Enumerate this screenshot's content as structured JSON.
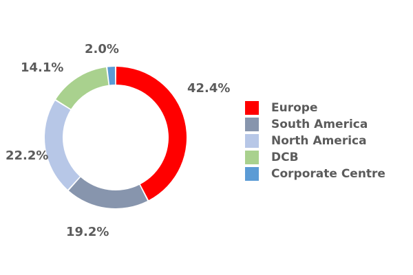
{
  "chart_data": {
    "type": "pie",
    "donut": true,
    "legend_position": "right",
    "categories": [
      "Europe",
      "South America",
      "North America",
      "DCB",
      "Corporate Centre"
    ],
    "values": [
      42.4,
      19.2,
      22.2,
      14.1,
      2.0
    ],
    "value_labels": [
      "42.4%",
      "19.2%",
      "22.2%",
      "14.1%",
      "2.0%"
    ],
    "colors": [
      "#ff0000",
      "#8795ad",
      "#b7c7e7",
      "#a9d18e",
      "#5b9bd5"
    ],
    "title": ""
  }
}
